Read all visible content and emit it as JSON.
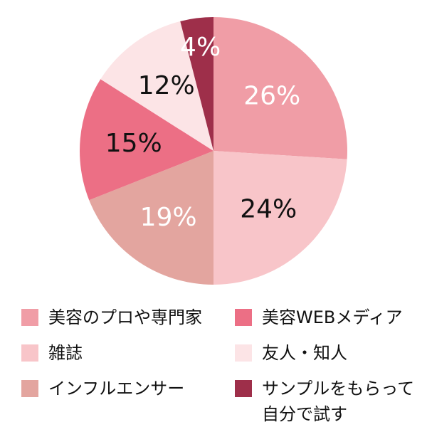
{
  "chart_data": {
    "type": "pie",
    "categories": [
      "美容のプロや専門家",
      "雑誌",
      "インフルエンサー",
      "美容WEBメディア",
      "友人・知人",
      "サンプルをもらって\n自分で試す"
    ],
    "values": [
      26,
      24,
      19,
      15,
      12,
      4
    ],
    "labels": [
      "26%",
      "24%",
      "19%",
      "15%",
      "12%",
      "4%"
    ],
    "colors": [
      "#F09DA6",
      "#F8C5C9",
      "#E3A59F",
      "#EC6F85",
      "#FCE4E6",
      "#9E2F4A"
    ],
    "label_colors": [
      "#ffffff",
      "#111111",
      "#ffffff",
      "#111111",
      "#111111",
      "#ffffff"
    ],
    "legend_position": "bottom"
  }
}
